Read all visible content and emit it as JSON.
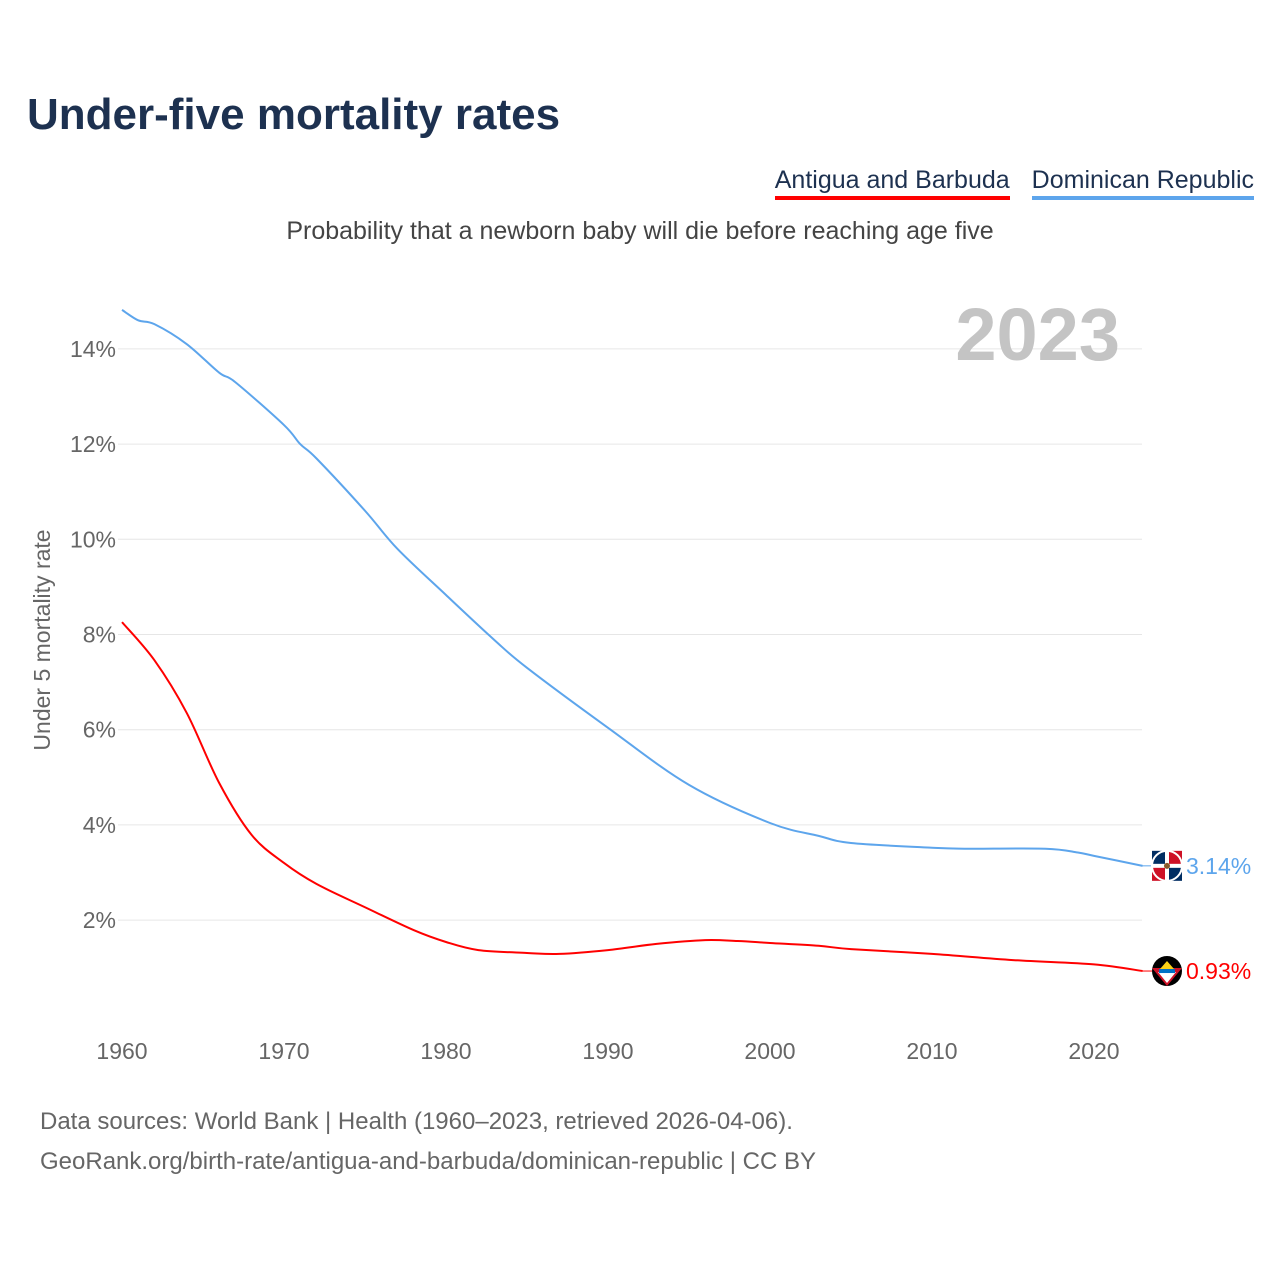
{
  "title": "Under-five mortality rates",
  "subtitle": "Probability that a newborn baby will die before reaching age five",
  "year_label": "2023",
  "footer": {
    "line1": "Data sources: World Bank | Health (1960–2023, retrieved 2026-04-06).",
    "line2": "GeoRank.org/birth-rate/antigua-and-barbuda/dominican-republic | CC BY"
  },
  "chart_data": {
    "type": "line",
    "title": "Under-five mortality rates",
    "ylabel": "Under 5 mortality rate",
    "xlabel": "",
    "xlim": [
      1960,
      2023
    ],
    "ylim": [
      0,
      15
    ],
    "x_ticks": [
      1960,
      1970,
      1980,
      1990,
      2000,
      2010,
      2020
    ],
    "y_ticks": [
      2,
      4,
      6,
      8,
      10,
      12,
      14
    ],
    "y_tick_labels": [
      "2%",
      "4%",
      "6%",
      "8%",
      "10%",
      "12%",
      "14%"
    ],
    "x_tick_labels": [
      "1960",
      "1970",
      "1980",
      "1990",
      "2000",
      "2010",
      "2020"
    ],
    "grid": true,
    "legend_position": "top-right",
    "series": [
      {
        "name": "Antigua and Barbuda",
        "color": "#ff0000",
        "end_label": "0.93%",
        "x": [
          1960,
          1962,
          1964,
          1966,
          1968,
          1970,
          1972,
          1975,
          1978,
          1980,
          1982,
          1985,
          1987,
          1990,
          1993,
          1996,
          1998,
          2000,
          2003,
          2005,
          2010,
          2015,
          2020,
          2023
        ],
        "values": [
          8.26,
          7.46,
          6.35,
          4.88,
          3.79,
          3.2,
          2.76,
          2.27,
          1.79,
          1.54,
          1.37,
          1.31,
          1.29,
          1.37,
          1.5,
          1.58,
          1.56,
          1.52,
          1.46,
          1.39,
          1.29,
          1.16,
          1.07,
          0.93
        ]
      },
      {
        "name": "Dominican Republic",
        "color": "#5da5ec",
        "end_label": "3.14%",
        "x": [
          1960,
          1961,
          1962,
          1964,
          1966,
          1967,
          1970,
          1971,
          1972,
          1975,
          1977,
          1980,
          1983,
          1985,
          1990,
          1995,
          2000,
          2003,
          2005,
          2010,
          2012,
          2017,
          2019,
          2020,
          2023
        ],
        "values": [
          14.82,
          14.6,
          14.52,
          14.1,
          13.5,
          13.3,
          12.4,
          12.0,
          11.7,
          10.6,
          9.8,
          8.83,
          7.88,
          7.3,
          6.04,
          4.84,
          4.04,
          3.77,
          3.62,
          3.52,
          3.5,
          3.5,
          3.42,
          3.35,
          3.14
        ]
      }
    ]
  }
}
